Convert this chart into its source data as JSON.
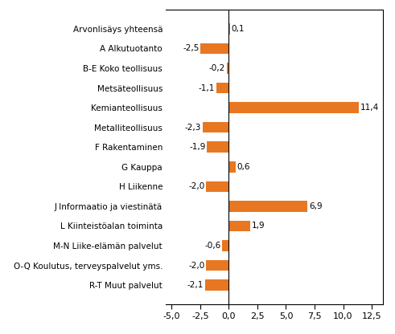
{
  "categories": [
    "R-T Muut palvelut",
    "O-Q Koulutus, terveyspalvelut yms.",
    "M-N Liike-elämän palvelut",
    "L Kiinteistöalan toiminta",
    "J Informaatio ja viestinätä",
    "H Liikenne",
    "G Kauppa",
    "F Rakentaminen",
    "Metalliteollisuus",
    "Kemianteollisuus",
    "Metsäteollisuus",
    "B-E Koko teollisuus",
    "A Alkutuotanto",
    "Arvonlisäys yhteensä"
  ],
  "values": [
    -2.1,
    -2.0,
    -0.6,
    1.9,
    6.9,
    -2.0,
    0.6,
    -1.9,
    -2.3,
    11.4,
    -1.1,
    -0.2,
    -2.5,
    0.1
  ],
  "bar_color": "#E87722",
  "xlim": [
    -5.5,
    13.5
  ],
  "xticks": [
    -5.0,
    -2.5,
    0.0,
    2.5,
    5.0,
    7.5,
    10.0,
    12.5
  ],
  "xtick_labels": [
    "-5,0",
    "-2,5",
    "0,0",
    "2,5",
    "5,0",
    "7,5",
    "10,0",
    "12,5"
  ],
  "background_color": "#ffffff",
  "label_fontsize": 7.5,
  "tick_fontsize": 8.0,
  "value_fontsize": 7.5
}
